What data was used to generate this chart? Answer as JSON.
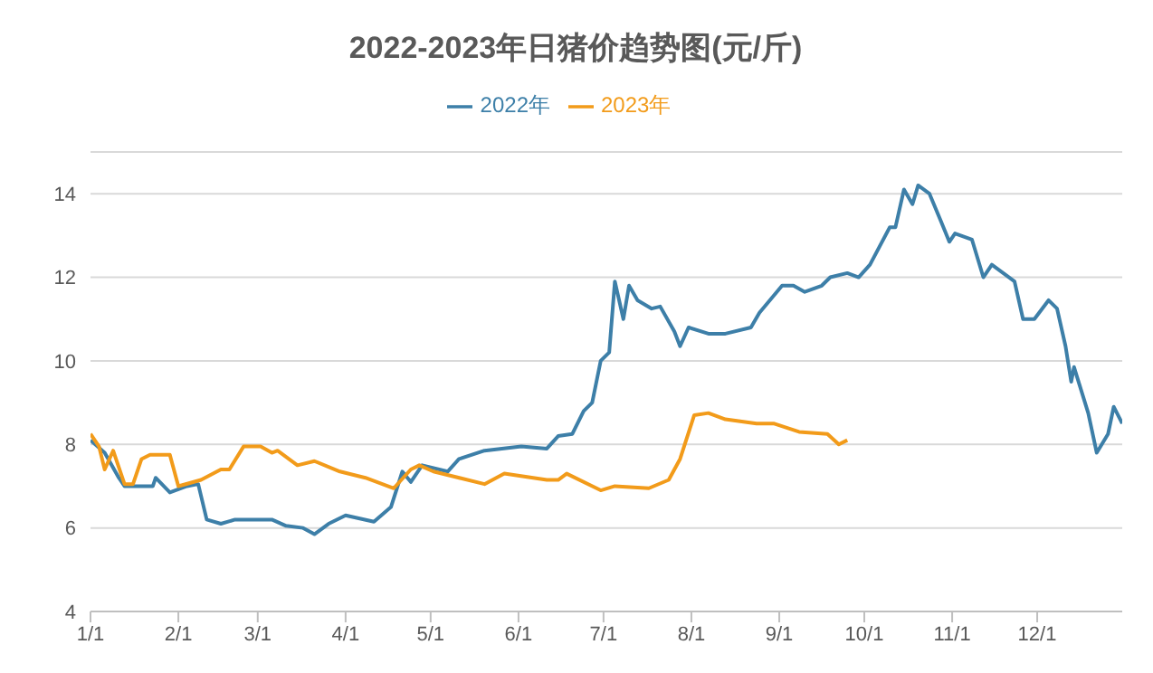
{
  "chart_data": {
    "type": "line",
    "title": "2022-2023年日猪价趋势图(元/斤)",
    "xlim": [
      "--01-01",
      "--12-31"
    ],
    "xticks": [
      {
        "value": "--01-01",
        "label": "1/1"
      },
      {
        "value": "--02-01",
        "label": "2/1"
      },
      {
        "value": "--03-01",
        "label": "3/1"
      },
      {
        "value": "--04-01",
        "label": "4/1"
      },
      {
        "value": "--05-01",
        "label": "5/1"
      },
      {
        "value": "--06-01",
        "label": "6/1"
      },
      {
        "value": "--07-01",
        "label": "7/1"
      },
      {
        "value": "--08-01",
        "label": "8/1"
      },
      {
        "value": "--09-01",
        "label": "9/1"
      },
      {
        "value": "--10-01",
        "label": "10/1"
      },
      {
        "value": "--11-01",
        "label": "11/1"
      },
      {
        "value": "--12-01",
        "label": "12/1"
      }
    ],
    "ylim": [
      4,
      15
    ],
    "yticks": [
      4,
      6,
      8,
      10,
      12,
      14
    ],
    "grid": "y",
    "legend": "top",
    "marker": "none",
    "line_style": "solid",
    "series": [
      {
        "name": "2022年",
        "color": "#3d7fa8",
        "x": [
          "--01-01",
          "--01-06",
          "--01-11",
          "--01-13",
          "--01-23",
          "--01-24",
          "--01-29",
          "--02-04",
          "--02-08",
          "--02-11",
          "--02-16",
          "--02-21",
          "--03-06",
          "--03-11",
          "--03-17",
          "--03-21",
          "--03-26",
          "--04-01",
          "--04-11",
          "--04-17",
          "--04-21",
          "--04-24",
          "--04-28",
          "--05-07",
          "--05-11",
          "--05-20",
          "--06-02",
          "--06-11",
          "--06-15",
          "--06-20",
          "--06-24",
          "--06-27",
          "--06-30",
          "--07-03",
          "--07-05",
          "--07-08",
          "--07-10",
          "--07-13",
          "--07-18",
          "--07-21",
          "--07-26",
          "--07-28",
          "--07-31",
          "--08-07",
          "--08-13",
          "--08-22",
          "--08-25",
          "--09-02",
          "--09-06",
          "--09-10",
          "--09-16",
          "--09-19",
          "--09-25",
          "--09-29",
          "--10-03",
          "--10-10",
          "--10-12",
          "--10-15",
          "--10-18",
          "--10-20",
          "--10-24",
          "--10-28",
          "--10-31",
          "--11-02",
          "--11-08",
          "--11-12",
          "--11-15",
          "--11-19",
          "--11-23",
          "--11-26",
          "--11-30",
          "--12-05",
          "--12-08",
          "--12-11",
          "--12-13",
          "--12-14",
          "--12-19",
          "--12-22",
          "--12-26",
          "--12-28",
          "--12-31"
        ],
        "values": [
          8.1,
          7.8,
          7.2,
          7.0,
          7.0,
          7.2,
          6.85,
          7.0,
          7.05,
          6.2,
          6.1,
          6.2,
          6.2,
          6.05,
          6.0,
          5.85,
          6.1,
          6.3,
          6.15,
          6.5,
          7.35,
          7.1,
          7.5,
          7.35,
          7.65,
          7.85,
          7.95,
          7.9,
          8.2,
          8.25,
          8.8,
          9.0,
          10.0,
          10.2,
          11.9,
          11.0,
          11.8,
          11.45,
          11.25,
          11.3,
          10.7,
          10.35,
          10.8,
          10.65,
          10.65,
          10.8,
          11.15,
          11.8,
          11.8,
          11.65,
          11.8,
          12.0,
          12.1,
          12.0,
          12.3,
          13.2,
          13.2,
          14.1,
          13.75,
          14.2,
          14.0,
          13.35,
          12.85,
          13.05,
          12.9,
          12.0,
          12.3,
          12.1,
          11.9,
          11.0,
          11.0,
          11.45,
          11.25,
          10.35,
          9.5,
          9.85,
          8.75,
          7.8,
          8.25,
          8.9,
          8.5
        ]
      },
      {
        "name": "2023年",
        "color": "#f29b1a",
        "x": [
          "--01-01",
          "--01-04",
          "--01-06",
          "--01-09",
          "--01-13",
          "--01-16",
          "--01-19",
          "--01-22",
          "--01-29",
          "--02-01",
          "--02-09",
          "--02-16",
          "--02-19",
          "--02-24",
          "--03-02",
          "--03-06",
          "--03-08",
          "--03-15",
          "--03-21",
          "--03-30",
          "--04-08",
          "--04-18",
          "--04-24",
          "--04-27",
          "--05-02",
          "--05-20",
          "--05-27",
          "--06-11",
          "--06-15",
          "--06-18",
          "--06-30",
          "--07-05",
          "--07-17",
          "--07-24",
          "--07-28",
          "--08-02",
          "--08-07",
          "--08-13",
          "--08-24",
          "--08-30",
          "--09-08",
          "--09-18",
          "--09-22",
          "--09-25"
        ],
        "values": [
          8.25,
          7.95,
          7.4,
          7.85,
          7.05,
          7.05,
          7.65,
          7.75,
          7.75,
          7.0,
          7.15,
          7.4,
          7.4,
          7.95,
          7.95,
          7.8,
          7.85,
          7.5,
          7.6,
          7.35,
          7.2,
          6.95,
          7.4,
          7.5,
          7.35,
          7.05,
          7.3,
          7.15,
          7.15,
          7.3,
          6.9,
          7.0,
          6.95,
          7.15,
          7.65,
          8.7,
          8.75,
          8.6,
          8.5,
          8.5,
          8.3,
          8.25,
          8.0,
          8.1
        ]
      }
    ]
  }
}
